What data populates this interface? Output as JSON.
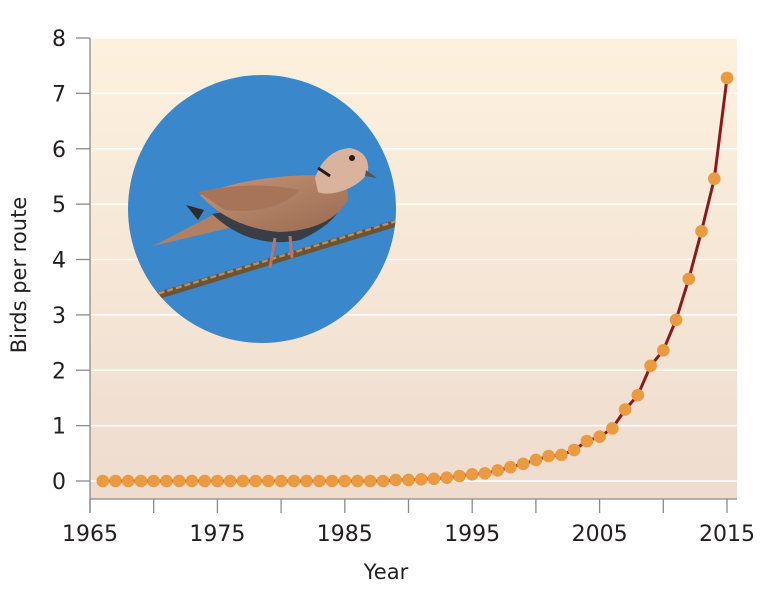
{
  "chart_data": {
    "type": "line",
    "title": "",
    "xlabel": "Year",
    "ylabel": "Birds per route",
    "xlim": [
      1965,
      2016
    ],
    "ylim": [
      -0.3,
      8
    ],
    "x_ticks": [
      1965,
      1975,
      1985,
      1995,
      2005,
      2015
    ],
    "x_minor_ticks": [
      1970,
      1980,
      1990,
      2000,
      2010
    ],
    "y_ticks": [
      0,
      1,
      2,
      3,
      4,
      5,
      6,
      7,
      8
    ],
    "grid": "horizontal",
    "legend": "none",
    "inset_image": "Eurasian collared dove perched on wire (circular photo)",
    "series": [
      {
        "name": "Birds per route",
        "line_color": "#8b1a1a",
        "marker_color": "#ea9a40",
        "x": [
          1966,
          1967,
          1968,
          1969,
          1970,
          1971,
          1972,
          1973,
          1974,
          1975,
          1976,
          1977,
          1978,
          1979,
          1980,
          1981,
          1982,
          1983,
          1984,
          1985,
          1986,
          1987,
          1988,
          1989,
          1990,
          1991,
          1992,
          1993,
          1994,
          1995,
          1996,
          1997,
          1998,
          1999,
          2000,
          2001,
          2002,
          2003,
          2004,
          2005,
          2006,
          2007,
          2008,
          2009,
          2010,
          2011,
          2012,
          2013,
          2014,
          2015
        ],
        "values": [
          0,
          0,
          0,
          0,
          0,
          0,
          0,
          0,
          0,
          0,
          0,
          0,
          0,
          0,
          0,
          0,
          0,
          0,
          0,
          0,
          0,
          0,
          0,
          0.02,
          0.02,
          0.03,
          0.04,
          0.06,
          0.09,
          0.12,
          0.14,
          0.19,
          0.25,
          0.31,
          0.38,
          0.45,
          0.47,
          0.56,
          0.72,
          0.8,
          0.95,
          1.29,
          1.55,
          2.08,
          2.36,
          2.91,
          3.65,
          4.51,
          5.46,
          7.28
        ]
      }
    ]
  },
  "colors": {
    "plot_bg_top": "#fdf0dc",
    "plot_bg_bottom": "#efdccc",
    "grid": "#ffffff",
    "axis": "#888888",
    "photo_sky": "#3b87cb"
  }
}
